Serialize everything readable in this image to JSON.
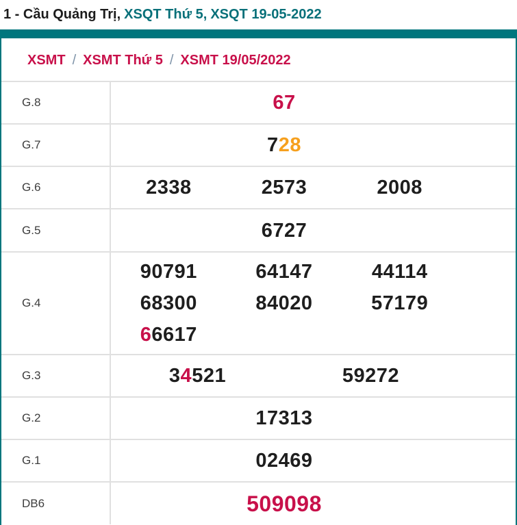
{
  "title": {
    "prefix": "1 - Cầu Quảng Trị,",
    "link_day": "XSQT Thứ 5,",
    "link_date": "XSQT 19-05-2022"
  },
  "breadcrumb": {
    "separator": "/",
    "items": [
      "XSMT",
      "XSMT Thứ 5",
      "XSMT 19/05/2022"
    ]
  },
  "colors": {
    "teal_bar": "#00767d",
    "teal_link": "#087079",
    "crimson_highlight": "#c8104a",
    "orange_highlight": "#f6a01e",
    "value_black": "#1e1e1e",
    "divider_gray": "#e0e0e0",
    "breadcrumb_slash": "#7e93a8"
  },
  "results": {
    "g8": {
      "label": "G.8",
      "value": "67"
    },
    "g7": {
      "label": "G.7",
      "part_black": "7",
      "part_orange": "28"
    },
    "g6": {
      "label": "G.6",
      "v1": "2338",
      "v2": "2573",
      "v3": "2008"
    },
    "g5": {
      "label": "G.5",
      "value": "6727"
    },
    "g4": {
      "label": "G.4",
      "r1c1": "90791",
      "r1c2": "64147",
      "r1c3": "44114",
      "r2c1": "68300",
      "r2c2": "84020",
      "r2c3": "57179",
      "r3_red": "6",
      "r3_rest": "6617"
    },
    "g3": {
      "label": "G.3",
      "v1_pre": "3",
      "v1_red": "4",
      "v1_post": "521",
      "v2": "59272"
    },
    "g2": {
      "label": "G.2",
      "value": "17313"
    },
    "g1": {
      "label": "G.1",
      "value": "02469"
    },
    "db6": {
      "label": "DB6",
      "value": "509098"
    }
  }
}
